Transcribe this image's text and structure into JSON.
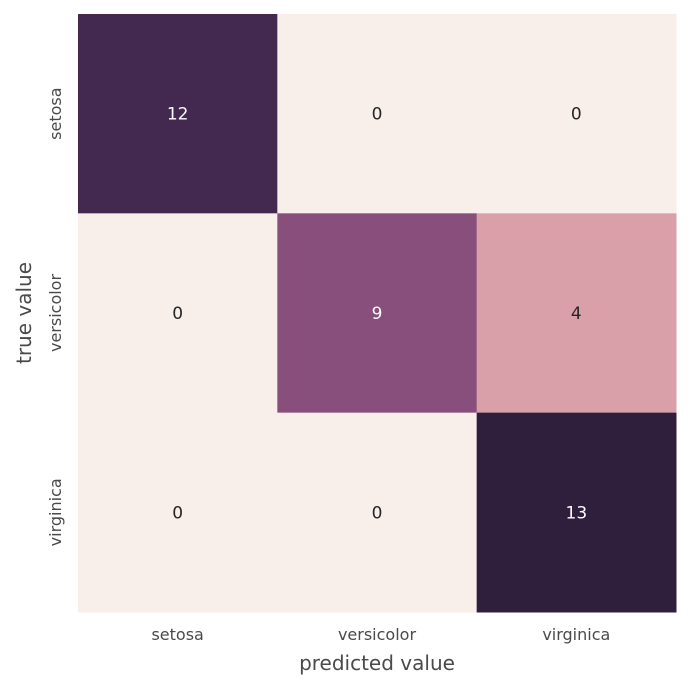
{
  "chart_data": {
    "type": "heatmap",
    "title": "",
    "xlabel": "predicted value",
    "ylabel": "true value",
    "x_categories": [
      "setosa",
      "versicolor",
      "virginica"
    ],
    "y_categories": [
      "setosa",
      "versicolor",
      "virginica"
    ],
    "values": [
      [
        12,
        0,
        0
      ],
      [
        0,
        9,
        4
      ],
      [
        0,
        0,
        13
      ]
    ],
    "colorbar": false,
    "grid": false,
    "annotations": true,
    "colors": {
      "0": "#f8efeb",
      "4": "#d9a0aa",
      "9": "#884f7d",
      "12": "#43294f",
      "13": "#2f1f3d"
    },
    "text_colors": {
      "dark": "#262626",
      "light": "#ffffff"
    }
  }
}
